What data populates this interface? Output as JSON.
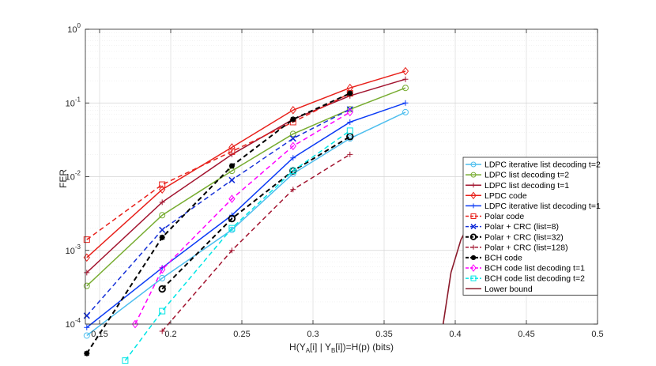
{
  "chart_data": {
    "type": "line",
    "title": "",
    "xlabel": "H(Y",
    "xlabel_sub1": "A",
    "xlabel_mid": "[i] | Y",
    "xlabel_sub2": "B",
    "xlabel_end": "[i])=H(p) (bits)",
    "ylabel": "FER",
    "xlim": [
      0.14,
      0.5
    ],
    "ylim": [
      0.0001,
      1
    ],
    "yscale": "log",
    "xticks": [
      0.15,
      0.2,
      0.25,
      0.3,
      0.35,
      0.4,
      0.45,
      0.5
    ],
    "xtick_labels": [
      "0.15",
      "0.2",
      "0.25",
      "0.3",
      "0.35",
      "0.4",
      "0.45",
      "0.5"
    ],
    "yticks": [
      1,
      0.1,
      0.01,
      0.001,
      0.0001
    ],
    "ytick_labels": [
      {
        "base": "10",
        "exp": "0"
      },
      {
        "base": "10",
        "exp": "-1"
      },
      {
        "base": "10",
        "exp": "-2"
      },
      {
        "base": "10",
        "exp": "-3"
      },
      {
        "base": "10",
        "exp": "-4"
      }
    ],
    "grid": true,
    "legend_position": "bottom-right",
    "series": [
      {
        "name": "LDPC iterative list decoding t=2",
        "color": "#4DBEEE",
        "dash": "solid",
        "marker": "circle",
        "x": [
          0.141,
          0.194,
          0.243,
          0.286,
          0.326,
          0.365
        ],
        "y": [
          7e-05,
          0.00042,
          0.0019,
          0.011,
          0.033,
          0.075
        ]
      },
      {
        "name": "LDPC list decoding t=2",
        "color": "#77AC30",
        "dash": "solid",
        "marker": "circle",
        "x": [
          0.141,
          0.194,
          0.243,
          0.286,
          0.326,
          0.365
        ],
        "y": [
          0.00033,
          0.003,
          0.012,
          0.038,
          0.082,
          0.16
        ]
      },
      {
        "name": "LDPC list decoding t=1",
        "color": "#A2142F",
        "dash": "solid",
        "marker": "plus",
        "x": [
          0.141,
          0.194,
          0.243,
          0.286,
          0.326,
          0.365
        ],
        "y": [
          0.0005,
          0.0045,
          0.02,
          0.06,
          0.125,
          0.21
        ]
      },
      {
        "name": "LPDC code",
        "color": "#E8201A",
        "dash": "solid",
        "marker": "diamond",
        "x": [
          0.141,
          0.194,
          0.243,
          0.286,
          0.326,
          0.365
        ],
        "y": [
          0.0008,
          0.0067,
          0.025,
          0.08,
          0.16,
          0.27
        ]
      },
      {
        "name": "LDPC iterative list decoding t=1",
        "color": "#0A3AF5",
        "dash": "solid",
        "marker": "plus",
        "x": [
          0.141,
          0.194,
          0.243,
          0.286,
          0.326,
          0.365
        ],
        "y": [
          9e-05,
          0.00058,
          0.003,
          0.018,
          0.055,
          0.1
        ]
      },
      {
        "name": "Polar code",
        "color": "#E8201A",
        "dash": "dashed",
        "marker": "square",
        "x": [
          0.141,
          0.194,
          0.243,
          0.286,
          0.326
        ],
        "y": [
          0.0014,
          0.0078,
          0.022,
          0.055,
          0.135
        ]
      },
      {
        "name": "Polar + CRC (list=8)",
        "color": "#1530D8",
        "dash": "dashed",
        "marker": "x",
        "x": [
          0.141,
          0.194,
          0.243,
          0.286,
          0.326
        ],
        "y": [
          0.00013,
          0.0019,
          0.009,
          0.033,
          0.082
        ]
      },
      {
        "name": "Polar + CRC (list=32)",
        "color": "#000000",
        "dash": "dashed",
        "marker": "circle-bold",
        "x": [
          0.194,
          0.243,
          0.286,
          0.326
        ],
        "y": [
          0.0003,
          0.0027,
          0.012,
          0.035
        ]
      },
      {
        "name": "Polar + CRC (list=128)",
        "color": "#A2142F",
        "dash": "dashed",
        "marker": "plus",
        "x": [
          0.194,
          0.243,
          0.286,
          0.326
        ],
        "y": [
          8e-05,
          0.001,
          0.0067,
          0.02
        ]
      },
      {
        "name": "BCH code",
        "color": "#000000",
        "dash": "dashed",
        "marker": "star",
        "x": [
          0.141,
          0.194,
          0.243,
          0.286,
          0.326
        ],
        "y": [
          4e-05,
          0.0015,
          0.014,
          0.06,
          0.135
        ]
      },
      {
        "name": "BCH code list decoding t=1",
        "color": "#FF00FF",
        "dash": "dashed",
        "marker": "diamond",
        "x": [
          0.175,
          0.194,
          0.243,
          0.286,
          0.326
        ],
        "y": [
          0.0001,
          0.00055,
          0.005,
          0.026,
          0.075
        ]
      },
      {
        "name": "BCH code list decoding t=2",
        "color": "#00E5E5",
        "dash": "dashed",
        "marker": "square",
        "x": [
          0.168,
          0.194,
          0.243,
          0.286,
          0.326
        ],
        "y": [
          3.2e-05,
          0.00015,
          0.002,
          0.012,
          0.042
        ]
      },
      {
        "name": "Lower bound",
        "color": "#8B1A2B",
        "dash": "solid",
        "marker": "none",
        "x": [
          0.3915,
          0.397,
          0.404,
          0.413,
          0.425,
          0.44
        ],
        "y": [
          0.0001,
          0.0005,
          0.0014,
          0.003,
          0.0055,
          0.01
        ]
      }
    ]
  }
}
